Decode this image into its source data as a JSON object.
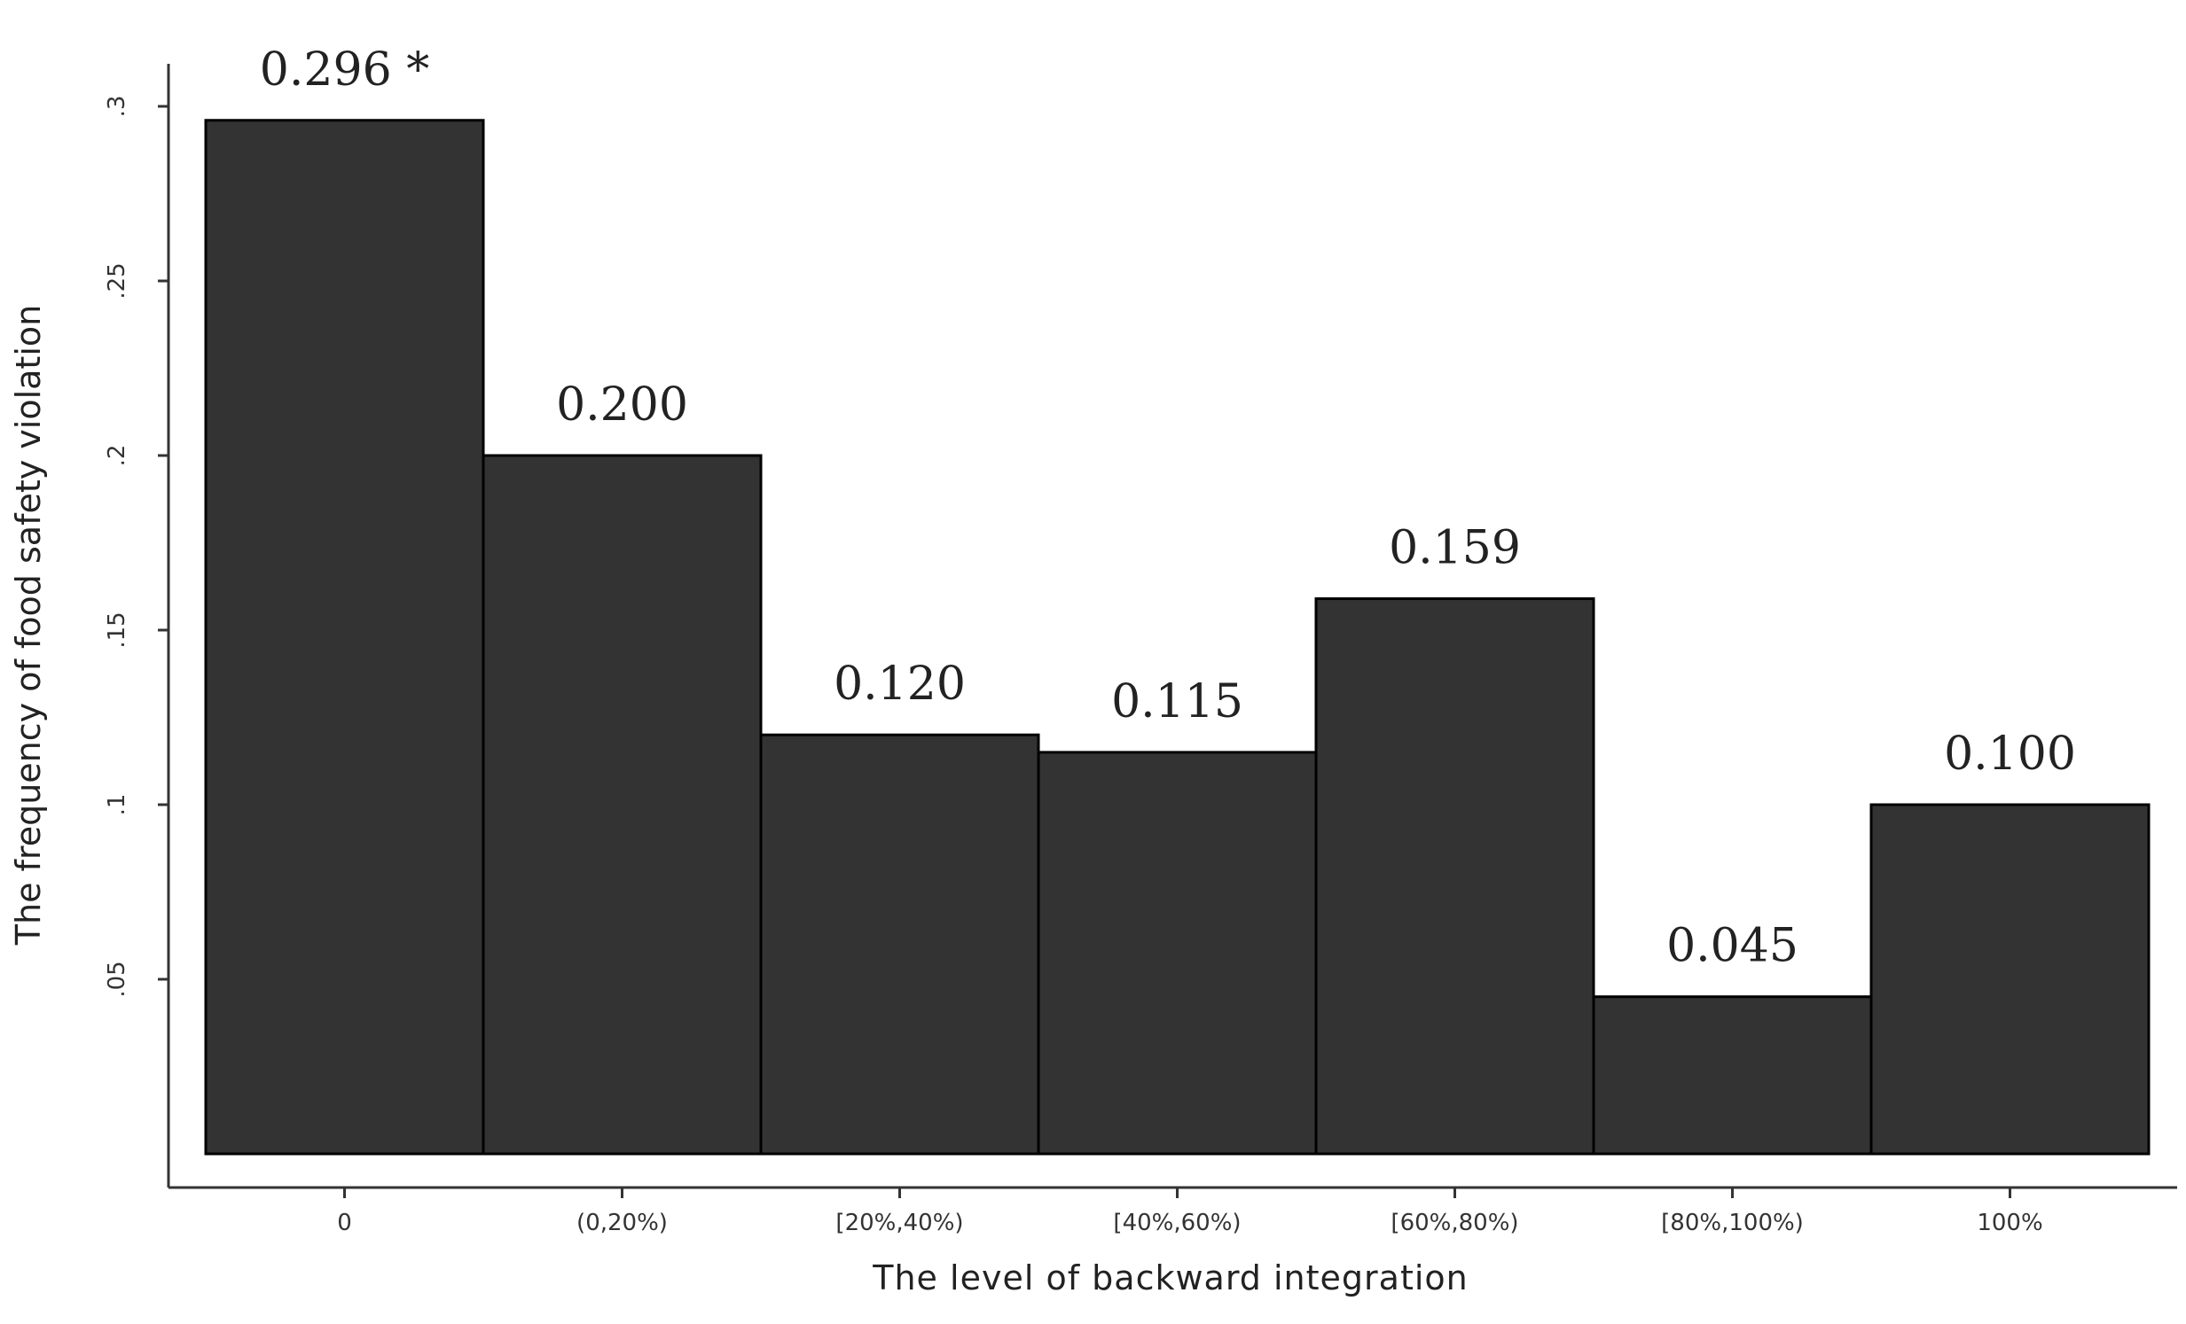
{
  "chart_data": {
    "type": "bar",
    "title": "",
    "xlabel": "The level of backward integration",
    "ylabel": "The frequency of food safety violation",
    "categories": [
      "0",
      "(0,20%)",
      "[20%,40%)",
      "[40%,60%)",
      "[60%,80%)",
      "[80%,100%)",
      "100%"
    ],
    "values": [
      0.296,
      0.2,
      0.12,
      0.115,
      0.159,
      0.045,
      0.1
    ],
    "value_labels": [
      "0.296 *",
      "0.200",
      "0.120",
      "0.115",
      "0.159",
      "0.045",
      "0.100"
    ],
    "yticks": [
      0.05,
      0.1,
      0.15,
      0.2,
      0.25,
      0.3
    ],
    "ytick_labels": [
      ".05",
      ".1",
      ".15",
      ".2",
      ".25",
      ".3"
    ],
    "ylim": [
      0,
      0.3
    ],
    "grid": false,
    "legend": "none",
    "bar_color": "#333333"
  }
}
